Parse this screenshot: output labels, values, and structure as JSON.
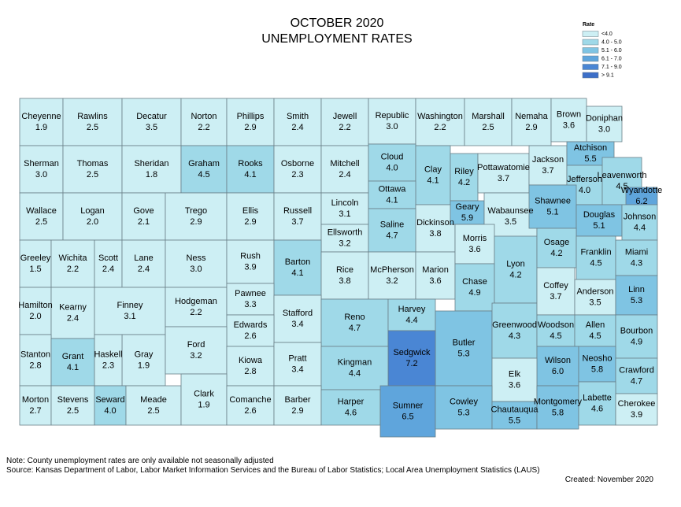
{
  "title": "OCTOBER 2020",
  "subtitle": "UNEMPLOYMENT RATES",
  "legend": {
    "title": "Rate",
    "items": [
      {
        "label": "<4.0",
        "color": "#cdeff4"
      },
      {
        "label": "4.0 - 5.0",
        "color": "#9fd9e8"
      },
      {
        "label": "5.1 - 6.0",
        "color": "#7fc4e3"
      },
      {
        "label": "6.1 - 7.0",
        "color": "#5fa5dc"
      },
      {
        "label": "7.1 - 9.0",
        "color": "#4a86d4"
      },
      {
        "label": "> 9.1",
        "color": "#3d6fc8"
      }
    ]
  },
  "counties": [
    {
      "name": "Cheyenne",
      "rate": "1.9",
      "color": "#cdeff4"
    },
    {
      "name": "Rawlins",
      "rate": "2.5",
      "color": "#cdeff4"
    },
    {
      "name": "Decatur",
      "rate": "3.5",
      "color": "#cdeff4"
    },
    {
      "name": "Norton",
      "rate": "2.2",
      "color": "#cdeff4"
    },
    {
      "name": "Phillips",
      "rate": "2.9",
      "color": "#cdeff4"
    },
    {
      "name": "Smith",
      "rate": "2.4",
      "color": "#cdeff4"
    },
    {
      "name": "Jewell",
      "rate": "2.2",
      "color": "#cdeff4"
    },
    {
      "name": "Republic",
      "rate": "3.0",
      "color": "#cdeff4"
    },
    {
      "name": "Washington",
      "rate": "2.2",
      "color": "#cdeff4"
    },
    {
      "name": "Marshall",
      "rate": "2.5",
      "color": "#cdeff4"
    },
    {
      "name": "Nemaha",
      "rate": "2.9",
      "color": "#cdeff4"
    },
    {
      "name": "Brown",
      "rate": "3.6",
      "color": "#cdeff4"
    },
    {
      "name": "Doniphan",
      "rate": "3.0",
      "color": "#cdeff4"
    },
    {
      "name": "Sherman",
      "rate": "3.0",
      "color": "#cdeff4"
    },
    {
      "name": "Thomas",
      "rate": "2.5",
      "color": "#cdeff4"
    },
    {
      "name": "Sheridan",
      "rate": "1.8",
      "color": "#cdeff4"
    },
    {
      "name": "Graham",
      "rate": "4.5",
      "color": "#9fd9e8"
    },
    {
      "name": "Rooks",
      "rate": "4.1",
      "color": "#9fd9e8"
    },
    {
      "name": "Osborne",
      "rate": "2.3",
      "color": "#cdeff4"
    },
    {
      "name": "Mitchell",
      "rate": "2.4",
      "color": "#cdeff4"
    },
    {
      "name": "Cloud",
      "rate": "4.0",
      "color": "#9fd9e8"
    },
    {
      "name": "Clay",
      "rate": "4.1",
      "color": "#9fd9e8"
    },
    {
      "name": "Riley",
      "rate": "4.2",
      "color": "#9fd9e8"
    },
    {
      "name": "Pottawatomie",
      "rate": "3.7",
      "color": "#cdeff4"
    },
    {
      "name": "Jackson",
      "rate": "3.7",
      "color": "#cdeff4"
    },
    {
      "name": "Atchison",
      "rate": "5.5",
      "color": "#7fc4e3"
    },
    {
      "name": "Jefferson",
      "rate": "4.0",
      "color": "#9fd9e8"
    },
    {
      "name": "Leavenworth",
      "rate": "4.5",
      "color": "#9fd9e8"
    },
    {
      "name": "Wyandotte",
      "rate": "6.2",
      "color": "#5fa5dc"
    },
    {
      "name": "Wallace",
      "rate": "2.5",
      "color": "#cdeff4"
    },
    {
      "name": "Logan",
      "rate": "2.0",
      "color": "#cdeff4"
    },
    {
      "name": "Gove",
      "rate": "2.1",
      "color": "#cdeff4"
    },
    {
      "name": "Trego",
      "rate": "2.9",
      "color": "#cdeff4"
    },
    {
      "name": "Ellis",
      "rate": "2.9",
      "color": "#cdeff4"
    },
    {
      "name": "Russell",
      "rate": "3.7",
      "color": "#cdeff4"
    },
    {
      "name": "Lincoln",
      "rate": "3.1",
      "color": "#cdeff4"
    },
    {
      "name": "Ottawa",
      "rate": "4.1",
      "color": "#9fd9e8"
    },
    {
      "name": "Dickinson",
      "rate": "3.8",
      "color": "#cdeff4"
    },
    {
      "name": "Geary",
      "rate": "5.9",
      "color": "#7fc4e3"
    },
    {
      "name": "Wabaunsee",
      "rate": "3.5",
      "color": "#cdeff4"
    },
    {
      "name": "Shawnee",
      "rate": "5.1",
      "color": "#7fc4e3"
    },
    {
      "name": "Douglas",
      "rate": "5.1",
      "color": "#7fc4e3"
    },
    {
      "name": "Johnson",
      "rate": "4.4",
      "color": "#9fd9e8"
    },
    {
      "name": "Ellsworth",
      "rate": "3.2",
      "color": "#cdeff4"
    },
    {
      "name": "Saline",
      "rate": "4.7",
      "color": "#9fd9e8"
    },
    {
      "name": "Greeley",
      "rate": "1.5",
      "color": "#cdeff4"
    },
    {
      "name": "Wichita",
      "rate": "2.2",
      "color": "#cdeff4"
    },
    {
      "name": "Scott",
      "rate": "2.4",
      "color": "#cdeff4"
    },
    {
      "name": "Lane",
      "rate": "2.4",
      "color": "#cdeff4"
    },
    {
      "name": "Ness",
      "rate": "3.0",
      "color": "#cdeff4"
    },
    {
      "name": "Rush",
      "rate": "3.9",
      "color": "#cdeff4"
    },
    {
      "name": "Barton",
      "rate": "4.1",
      "color": "#9fd9e8"
    },
    {
      "name": "Rice",
      "rate": "3.8",
      "color": "#cdeff4"
    },
    {
      "name": "McPherson",
      "rate": "3.2",
      "color": "#cdeff4"
    },
    {
      "name": "Marion",
      "rate": "3.6",
      "color": "#cdeff4"
    },
    {
      "name": "Morris",
      "rate": "3.6",
      "color": "#cdeff4"
    },
    {
      "name": "Chase",
      "rate": "4.9",
      "color": "#9fd9e8"
    },
    {
      "name": "Lyon",
      "rate": "4.2",
      "color": "#9fd9e8"
    },
    {
      "name": "Osage",
      "rate": "4.2",
      "color": "#9fd9e8"
    },
    {
      "name": "Franklin",
      "rate": "4.5",
      "color": "#9fd9e8"
    },
    {
      "name": "Miami",
      "rate": "4.3",
      "color": "#9fd9e8"
    },
    {
      "name": "Hamilton",
      "rate": "2.0",
      "color": "#cdeff4"
    },
    {
      "name": "Kearny",
      "rate": "2.4",
      "color": "#cdeff4"
    },
    {
      "name": "Finney",
      "rate": "3.1",
      "color": "#cdeff4"
    },
    {
      "name": "Hodgeman",
      "rate": "2.2",
      "color": "#cdeff4"
    },
    {
      "name": "Pawnee",
      "rate": "3.3",
      "color": "#cdeff4"
    },
    {
      "name": "Stafford",
      "rate": "3.4",
      "color": "#cdeff4"
    },
    {
      "name": "Reno",
      "rate": "4.7",
      "color": "#9fd9e8"
    },
    {
      "name": "Harvey",
      "rate": "4.4",
      "color": "#9fd9e8"
    },
    {
      "name": "Butler",
      "rate": "5.3",
      "color": "#7fc4e3"
    },
    {
      "name": "Greenwood",
      "rate": "4.3",
      "color": "#9fd9e8"
    },
    {
      "name": "Coffey",
      "rate": "3.7",
      "color": "#cdeff4"
    },
    {
      "name": "Anderson",
      "rate": "3.5",
      "color": "#cdeff4"
    },
    {
      "name": "Linn",
      "rate": "5.3",
      "color": "#7fc4e3"
    },
    {
      "name": "Edwards",
      "rate": "2.6",
      "color": "#cdeff4"
    },
    {
      "name": "Gray",
      "rate": "1.9",
      "color": "#cdeff4"
    },
    {
      "name": "Ford",
      "rate": "3.2",
      "color": "#cdeff4"
    },
    {
      "name": "Sedgwick",
      "rate": "7.2",
      "color": "#4a86d4"
    },
    {
      "name": "Woodson",
      "rate": "4.5",
      "color": "#9fd9e8"
    },
    {
      "name": "Allen",
      "rate": "4.5",
      "color": "#9fd9e8"
    },
    {
      "name": "Bourbon",
      "rate": "4.9",
      "color": "#9fd9e8"
    },
    {
      "name": "Stanton",
      "rate": "2.8",
      "color": "#cdeff4"
    },
    {
      "name": "Grant",
      "rate": "4.1",
      "color": "#9fd9e8"
    },
    {
      "name": "Haskell",
      "rate": "2.3",
      "color": "#cdeff4"
    },
    {
      "name": "Kiowa",
      "rate": "2.8",
      "color": "#cdeff4"
    },
    {
      "name": "Pratt",
      "rate": "3.4",
      "color": "#cdeff4"
    },
    {
      "name": "Kingman",
      "rate": "4.4",
      "color": "#9fd9e8"
    },
    {
      "name": "Wilson",
      "rate": "6.0",
      "color": "#7fc4e3"
    },
    {
      "name": "Neosho",
      "rate": "5.8",
      "color": "#7fc4e3"
    },
    {
      "name": "Crawford",
      "rate": "4.7",
      "color": "#9fd9e8"
    },
    {
      "name": "Elk",
      "rate": "3.6",
      "color": "#cdeff4"
    },
    {
      "name": "Morton",
      "rate": "2.7",
      "color": "#cdeff4"
    },
    {
      "name": "Stevens",
      "rate": "2.5",
      "color": "#cdeff4"
    },
    {
      "name": "Seward",
      "rate": "4.0",
      "color": "#9fd9e8"
    },
    {
      "name": "Meade",
      "rate": "2.5",
      "color": "#cdeff4"
    },
    {
      "name": "Clark",
      "rate": "1.9",
      "color": "#cdeff4"
    },
    {
      "name": "Comanche",
      "rate": "2.6",
      "color": "#cdeff4"
    },
    {
      "name": "Barber",
      "rate": "2.9",
      "color": "#cdeff4"
    },
    {
      "name": "Harper",
      "rate": "4.6",
      "color": "#9fd9e8"
    },
    {
      "name": "Sumner",
      "rate": "6.5",
      "color": "#5fa5dc"
    },
    {
      "name": "Cowley",
      "rate": "5.3",
      "color": "#7fc4e3"
    },
    {
      "name": "Chautauqua",
      "rate": "5.5",
      "color": "#7fc4e3"
    },
    {
      "name": "Montgomery",
      "rate": "5.8",
      "color": "#7fc4e3"
    },
    {
      "name": "Labette",
      "rate": "4.6",
      "color": "#9fd9e8"
    },
    {
      "name": "Cherokee",
      "rate": "3.9",
      "color": "#cdeff4"
    }
  ],
  "notes": [
    "Note: County unemployment rates are only available not seasonally adjusted",
    "Source: Kansas Department of Labor, Labor Market Information Services and the Bureau of Labor Statistics; Local Area Unemployment Statistics (LAUS)"
  ],
  "created": "Created:  November 2020"
}
